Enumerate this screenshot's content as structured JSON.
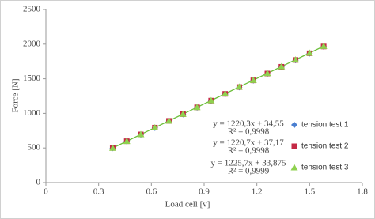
{
  "chart_data": {
    "type": "scatter",
    "x_label": "Load cell [v]",
    "y_label": "Force [N]",
    "x": [
      0.38,
      0.46,
      0.54,
      0.62,
      0.7,
      0.78,
      0.86,
      0.94,
      1.02,
      1.1,
      1.18,
      1.26,
      1.34,
      1.42,
      1.5,
      1.58
    ],
    "series": [
      {
        "name": "tension test 1",
        "color": "#4a7fd0",
        "marker": "diamond",
        "values": [
          498,
          596,
          693,
          791,
          889,
          986,
          1084,
          1182,
          1279,
          1377,
          1475,
          1572,
          1670,
          1768,
          1865,
          1963
        ]
      },
      {
        "name": "tension test 2",
        "color": "#c42a45",
        "marker": "square",
        "values": [
          501,
          598,
          696,
          794,
          891,
          989,
          1087,
          1184,
          1282,
          1380,
          1477,
          1575,
          1673,
          1771,
          1868,
          1966
        ]
      },
      {
        "name": "tension test 3",
        "color": "#8fd14f",
        "marker": "triangle",
        "values": [
          500,
          598,
          696,
          794,
          892,
          990,
          1088,
          1186,
          1284,
          1382,
          1480,
          1578,
          1676,
          1774,
          1872,
          1970
        ]
      }
    ],
    "trendline_color": "#6cbf3a",
    "annotations": [
      "y = 1220,3x + 34,55",
      "R² = 0,9998",
      "y = 1220,7x + 37,17",
      "R² = 0,9998",
      "y = 1225,7x + 33,875",
      "R² = 0,9999"
    ],
    "xlim": [
      0,
      1.8
    ],
    "xticks": [
      0,
      0.3,
      0.6,
      0.9,
      {
        "value": 1.2,
        "label": "1.2"
      },
      1.5,
      1.8
    ],
    "ylim": [
      0,
      2500
    ],
    "yticks": [
      0,
      500,
      1000,
      1500,
      2000,
      2500
    ],
    "grid": false,
    "legend": "right"
  }
}
